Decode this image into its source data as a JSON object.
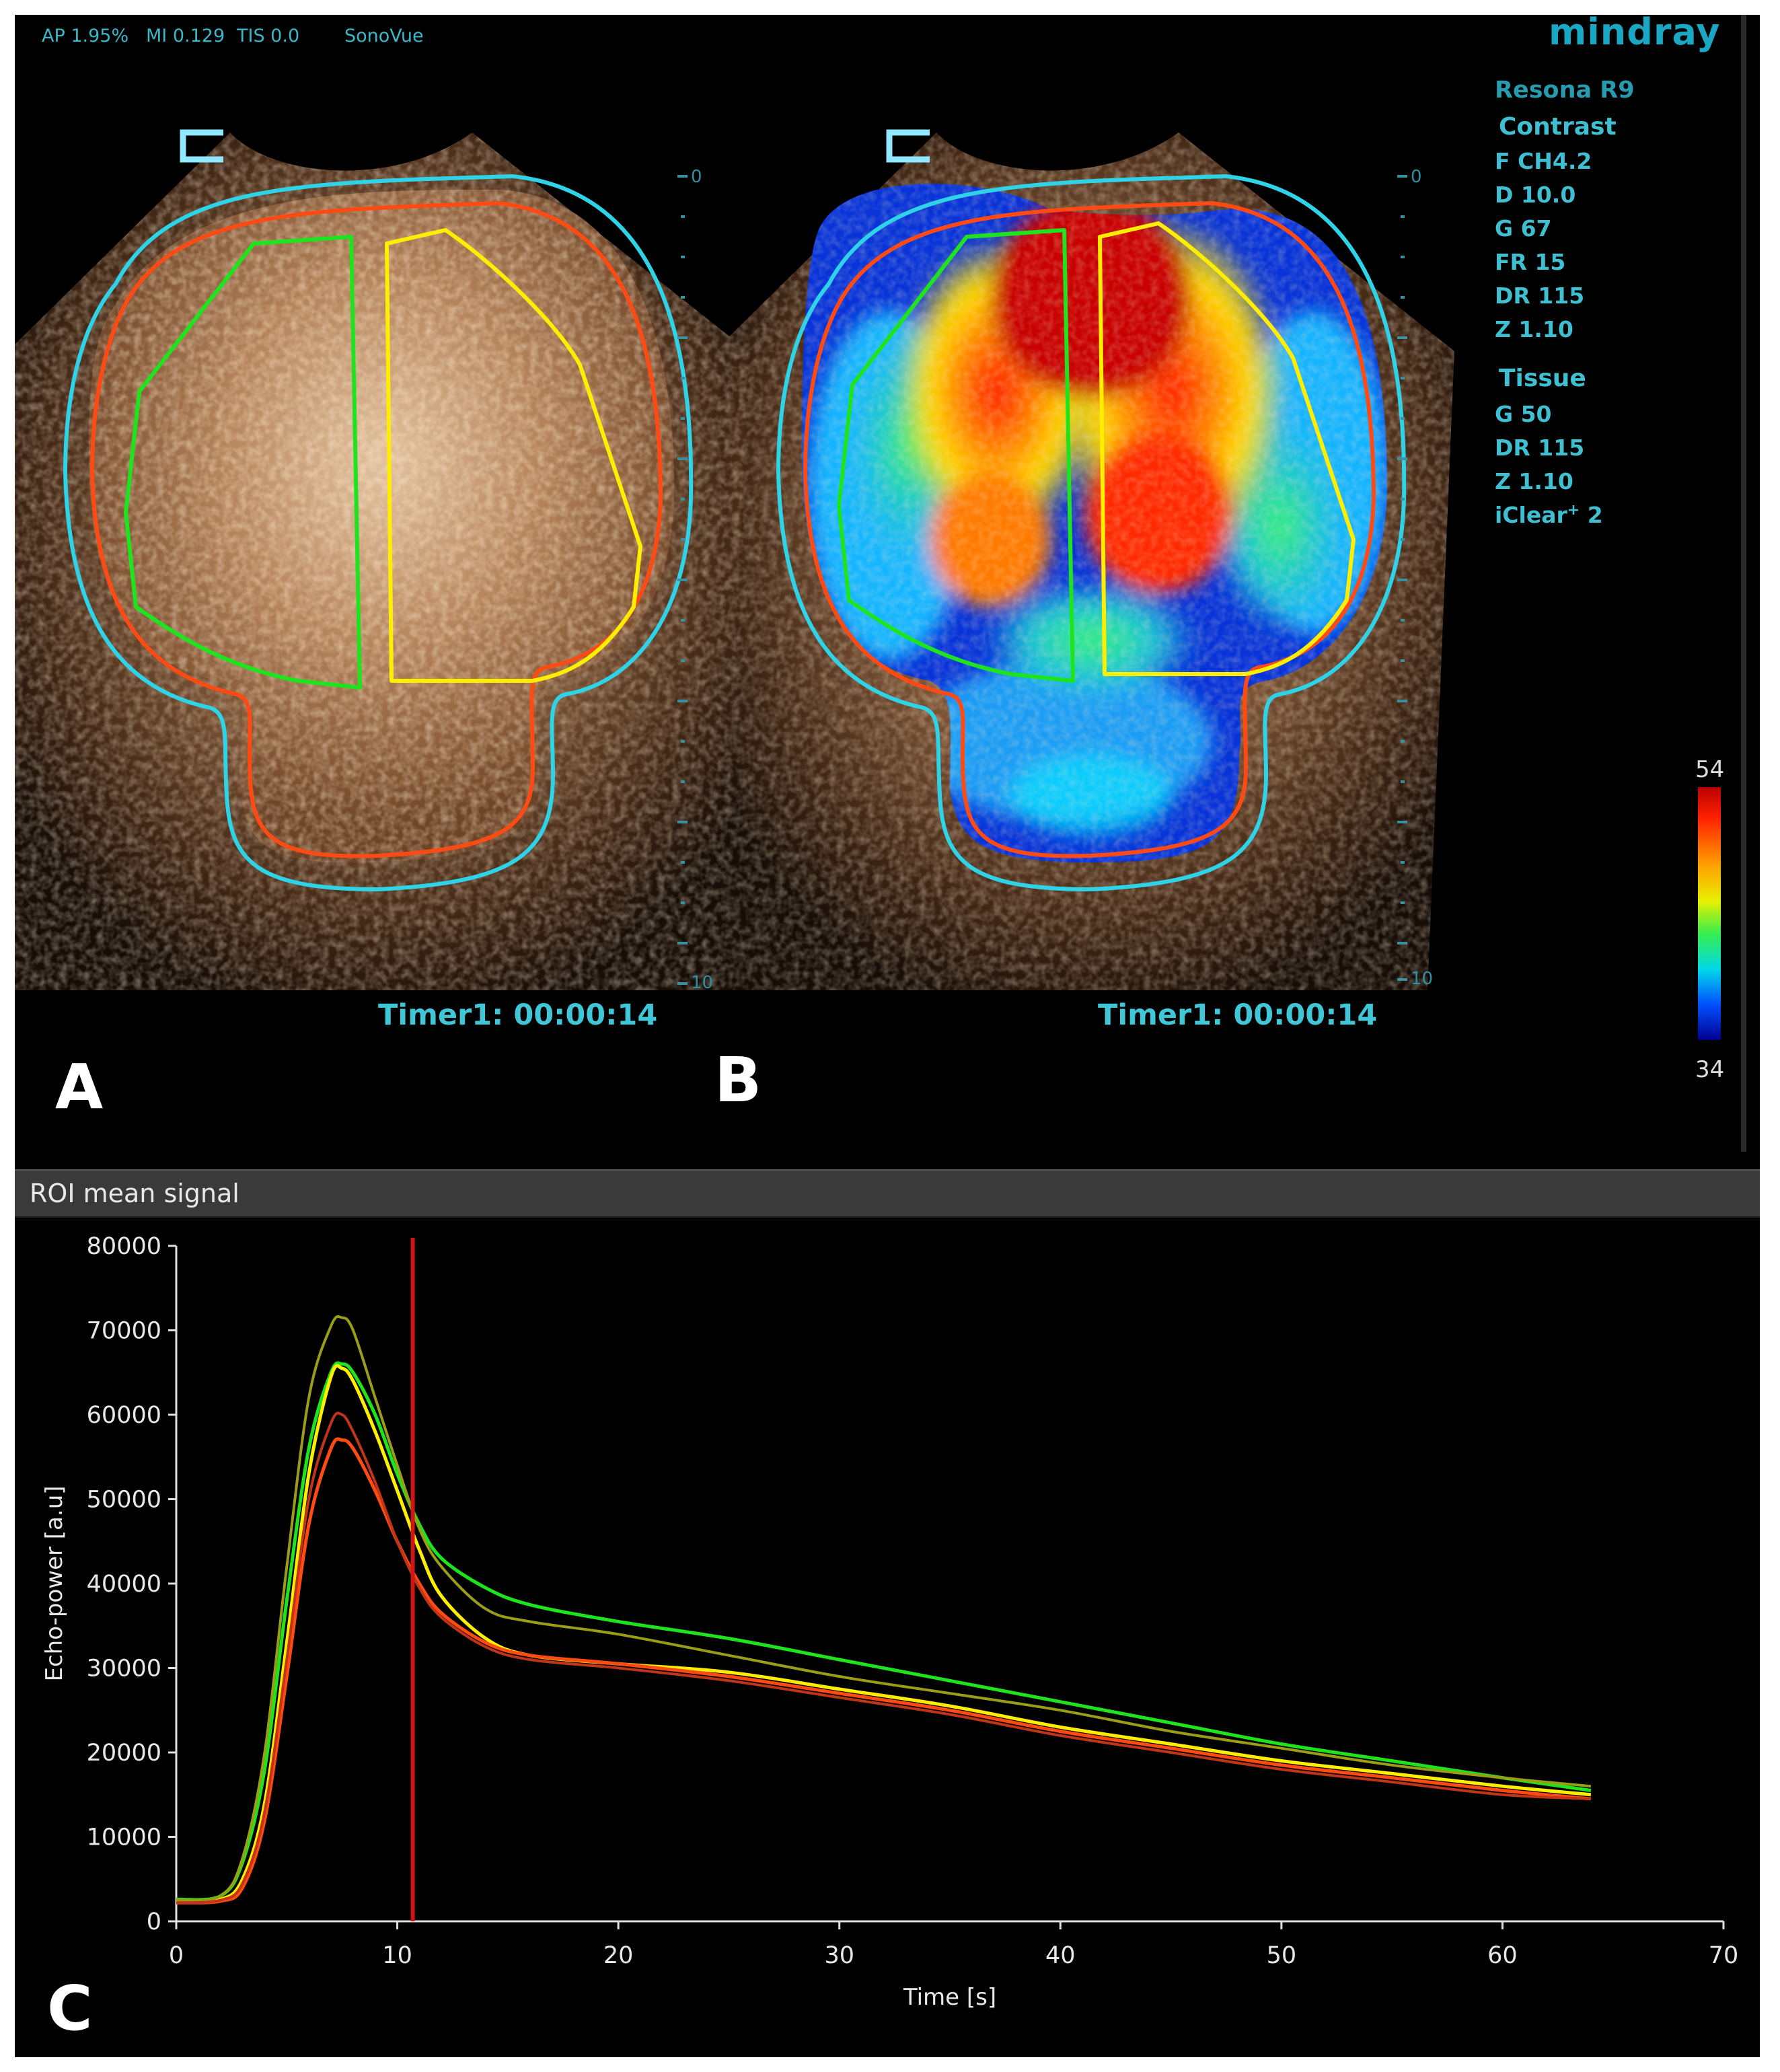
{
  "header": {
    "ap": "AP 1.95%",
    "mi": "MI 0.129",
    "tis": "TIS 0.0",
    "agent": "SonoVue",
    "brand": "mindray"
  },
  "params": {
    "model": "Resona R9",
    "contrast_title": "Contrast",
    "contrast": [
      "F CH4.2",
      "D 10.0",
      "G 67",
      "FR 15",
      "DR 115",
      "Z 1.10"
    ],
    "tissue_title": "Tissue",
    "tissue": [
      "G 50",
      "DR 115",
      "Z 1.10"
    ],
    "iclear": "iClear",
    "iclear_value": "2"
  },
  "depth_scale": {
    "top": "0",
    "bottom": "10"
  },
  "panels": {
    "a": {
      "letter": "A",
      "timer": "Timer1: 00:00:14"
    },
    "b": {
      "letter": "B",
      "timer": "Timer1: 00:00:14"
    },
    "c": {
      "letter": "C"
    }
  },
  "colorbar": {
    "max": "54",
    "min": "34"
  },
  "colors": {
    "outline_cyan": "#2fd3e8",
    "outline_orange": "#ff4a14",
    "roi_green": "#1ee41e",
    "roi_yellow": "#ffee00",
    "timeline_cursor": "#d11414"
  },
  "chart_panel": {
    "title": "ROI mean signal"
  },
  "chart_data": {
    "type": "line",
    "xlabel": "Time [s]",
    "ylabel": "Echo-power [a.u]",
    "xlim": [
      0,
      70
    ],
    "ylim": [
      0,
      80000
    ],
    "xticks": [
      0,
      10,
      20,
      30,
      40,
      50,
      60,
      70
    ],
    "yticks": [
      0,
      10000,
      20000,
      30000,
      40000,
      50000,
      60000,
      70000,
      80000
    ],
    "cursor_x": 10.7,
    "series": [
      {
        "color": "#1ee41e",
        "x": [
          0,
          2,
          3,
          4,
          5,
          6,
          7,
          7.5,
          8,
          9,
          10,
          11,
          12,
          14,
          16,
          20,
          25,
          30,
          35,
          40,
          45,
          50,
          55,
          60,
          64
        ],
        "y": [
          2600,
          3000,
          7000,
          18000,
          38000,
          56000,
          65000,
          66000,
          65000,
          60000,
          53000,
          47000,
          43000,
          39500,
          37500,
          35500,
          33500,
          31000,
          28500,
          26000,
          23500,
          21000,
          19000,
          17000,
          15500
        ]
      },
      {
        "color": "#ffee00",
        "x": [
          0,
          2,
          3,
          4,
          5,
          6,
          7,
          7.5,
          8,
          9,
          10,
          11,
          12,
          14,
          16,
          20,
          25,
          30,
          35,
          40,
          45,
          50,
          55,
          60,
          64
        ],
        "y": [
          2400,
          2600,
          5000,
          14000,
          33000,
          53000,
          64500,
          65500,
          64000,
          58000,
          51000,
          44000,
          38500,
          33500,
          31500,
          30500,
          29500,
          27500,
          25500,
          23000,
          21000,
          19000,
          17500,
          16000,
          15000
        ]
      },
      {
        "color": "#ff4a14",
        "x": [
          0,
          2,
          3,
          4,
          5,
          6,
          7,
          7.5,
          8,
          9,
          10,
          11,
          12,
          14,
          16,
          20,
          25,
          30,
          35,
          40,
          45,
          50,
          55,
          60,
          64
        ],
        "y": [
          2200,
          2400,
          4000,
          12000,
          29000,
          47000,
          56000,
          57000,
          56000,
          51000,
          45000,
          40000,
          36500,
          33000,
          31500,
          30500,
          29000,
          27000,
          25000,
          22500,
          20500,
          18500,
          17000,
          15500,
          14500
        ]
      },
      {
        "color": "#9a9e17",
        "x": [
          0,
          2,
          3,
          4,
          5,
          6,
          7,
          7.5,
          8,
          9,
          10,
          11,
          12,
          14,
          16,
          20,
          25,
          30,
          35,
          40,
          45,
          50,
          55,
          60,
          64
        ],
        "y": [
          2500,
          3000,
          7500,
          20000,
          42000,
          62000,
          70500,
          71500,
          70000,
          62000,
          54000,
          46500,
          42000,
          37000,
          35500,
          34000,
          31500,
          29000,
          27000,
          25000,
          22500,
          20500,
          18500,
          17000,
          16000
        ]
      },
      {
        "color": "#c03418",
        "x": [
          0,
          2,
          3,
          4,
          5,
          6,
          7,
          7.5,
          8,
          9,
          10,
          11,
          12,
          14,
          16,
          20,
          25,
          30,
          35,
          40,
          45,
          50,
          55,
          60,
          64
        ],
        "y": [
          2200,
          2500,
          4500,
          13000,
          31000,
          50000,
          59000,
          60000,
          58000,
          52000,
          45000,
          39500,
          36000,
          32500,
          31000,
          30000,
          28500,
          26500,
          24500,
          22000,
          20000,
          18000,
          16500,
          15000,
          14500
        ]
      }
    ]
  }
}
